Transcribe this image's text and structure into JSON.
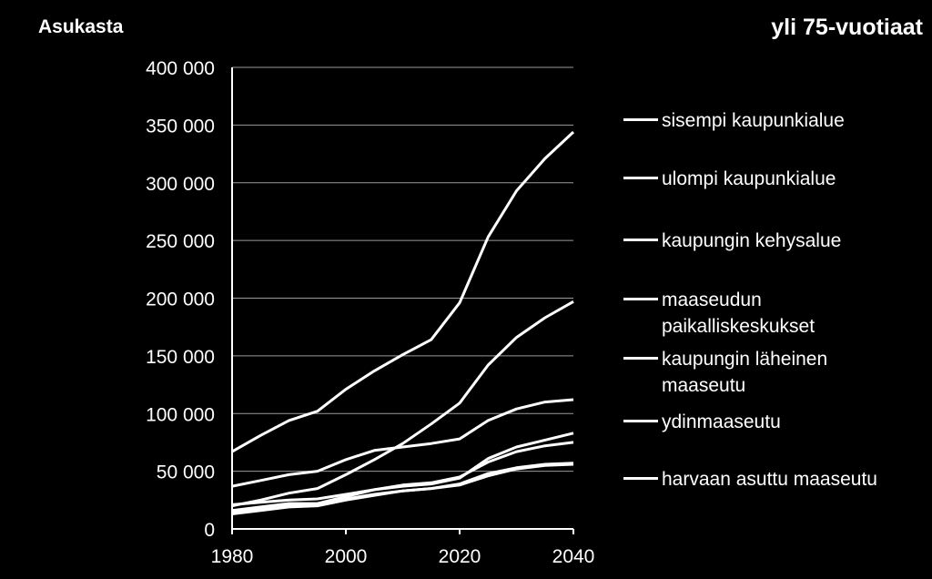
{
  "chart_data": {
    "type": "line",
    "title": "yli 75-vuotiaat",
    "ylabel": "Asukasta",
    "xlabel": "",
    "xlim": [
      1980,
      2040
    ],
    "ylim": [
      0,
      400000
    ],
    "x_ticks": [
      "1980",
      "2000",
      "2020",
      "2040"
    ],
    "y_ticks": [
      "0",
      "50 000",
      "100 000",
      "150 000",
      "200 000",
      "250 000",
      "300 000",
      "350 000",
      "400 000"
    ],
    "grid": "horizontal",
    "legend_position": "right",
    "x": [
      1980,
      1985,
      1990,
      1995,
      2000,
      2005,
      2010,
      2015,
      2020,
      2025,
      2030,
      2035,
      2040
    ],
    "series": [
      {
        "name": "sisempi kaupunkialue",
        "values": [
          67000,
          81000,
          94000,
          102000,
          121000,
          137000,
          151000,
          164000,
          196000,
          253000,
          293000,
          321000,
          344000
        ]
      },
      {
        "name": "ulompi kaupunkialue",
        "values": [
          20000,
          25000,
          31000,
          35000,
          47000,
          60000,
          74000,
          91000,
          109000,
          142000,
          166000,
          183000,
          197000
        ]
      },
      {
        "name": "kaupungin kehysalue",
        "values": [
          37000,
          42000,
          47000,
          50000,
          60000,
          68000,
          71000,
          74000,
          78000,
          94000,
          104000,
          110000,
          112000
        ]
      },
      {
        "name": "maaseudun paikalliskeskukset",
        "values": [
          16000,
          19000,
          22000,
          22000,
          28000,
          34000,
          38000,
          40000,
          45000,
          58000,
          67000,
          72000,
          75000
        ]
      },
      {
        "name": "kaupungin läheinen maaseutu",
        "values": [
          21000,
          23000,
          25000,
          26000,
          30000,
          34000,
          37000,
          39000,
          44000,
          61000,
          71000,
          77000,
          83000
        ]
      },
      {
        "name": "ydinmaaseutu",
        "values": [
          13000,
          16000,
          19000,
          20000,
          25000,
          29000,
          33000,
          35000,
          38000,
          46000,
          52000,
          55000,
          56000
        ]
      },
      {
        "name": "harvaan asuttu maaseutu",
        "values": [
          15000,
          17000,
          20000,
          21000,
          26000,
          30000,
          33000,
          35000,
          39000,
          48000,
          53000,
          56000,
          57000
        ]
      }
    ]
  }
}
